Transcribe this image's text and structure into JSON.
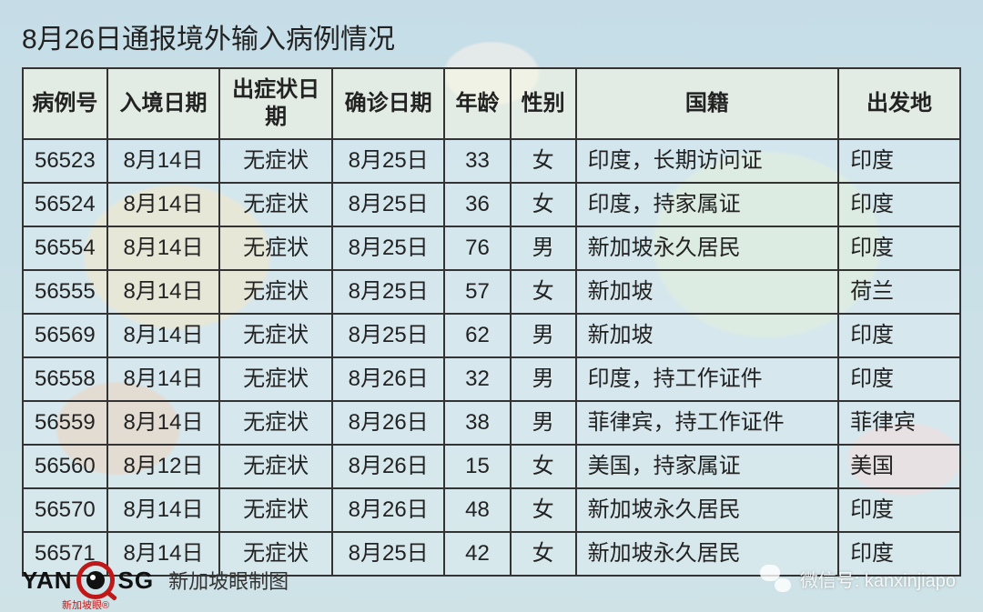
{
  "title": "8月26日通报境外输入病例情况",
  "table": {
    "columns": [
      "病例号",
      "入境日期",
      "出症状日期",
      "确诊日期",
      "年龄",
      "性别",
      "国籍",
      "出发地"
    ],
    "col_widths_pct": [
      9,
      12,
      12,
      12,
      7,
      7,
      28,
      13
    ],
    "col_align": [
      "center",
      "center",
      "center",
      "center",
      "center",
      "center",
      "left",
      "left"
    ],
    "header_bg": "#faf8e1",
    "cell_bg": "#e6f2f8",
    "border_color": "#333333",
    "font_size_pt": 18,
    "rows": [
      [
        "56523",
        "8月14日",
        "无症状",
        "8月25日",
        "33",
        "女",
        "印度，长期访问证",
        "印度"
      ],
      [
        "56524",
        "8月14日",
        "无症状",
        "8月25日",
        "36",
        "女",
        "印度，持家属证",
        "印度"
      ],
      [
        "56554",
        "8月14日",
        "无症状",
        "8月25日",
        "76",
        "男",
        "新加坡永久居民",
        "印度"
      ],
      [
        "56555",
        "8月14日",
        "无症状",
        "8月25日",
        "57",
        "女",
        "新加坡",
        "荷兰"
      ],
      [
        "56569",
        "8月14日",
        "无症状",
        "8月25日",
        "62",
        "男",
        "新加坡",
        "印度"
      ],
      [
        "56558",
        "8月14日",
        "无症状",
        "8月26日",
        "32",
        "男",
        "印度，持工作证件",
        "印度"
      ],
      [
        "56559",
        "8月14日",
        "无症状",
        "8月26日",
        "38",
        "男",
        "菲律宾，持工作证件",
        "菲律宾"
      ],
      [
        "56560",
        "8月12日",
        "无症状",
        "8月26日",
        "15",
        "女",
        "美国，持家属证",
        "美国"
      ],
      [
        "56570",
        "8月14日",
        "无症状",
        "8月26日",
        "48",
        "女",
        "新加坡永久居民",
        "印度"
      ],
      [
        "56571",
        "8月14日",
        "无症状",
        "8月25日",
        "42",
        "女",
        "新加坡永久居民",
        "印度"
      ]
    ]
  },
  "logo": {
    "left": "YAN",
    "right": "SG",
    "sub": "新加坡眼®",
    "accent_color": "#c01818"
  },
  "credit": "新加坡眼制图",
  "wechat": {
    "label": "微信号: kanxinjiapo"
  },
  "background": {
    "ocean_color": "#b5d6e8",
    "land_colors": [
      "#f4d9a6",
      "#e7b998",
      "#d6eac6",
      "#f6c9c9",
      "#ededed"
    ]
  }
}
